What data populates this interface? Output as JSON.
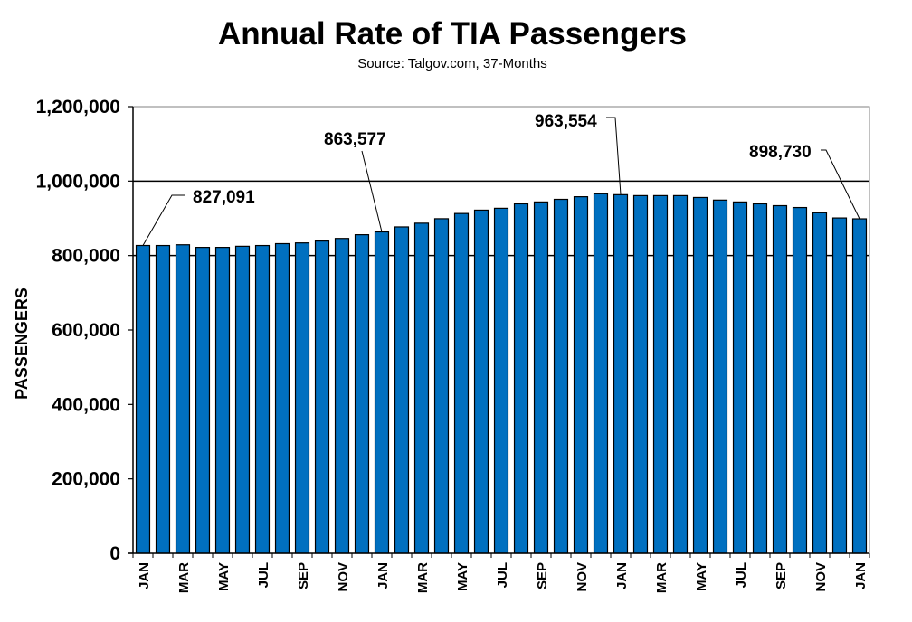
{
  "chart_data": {
    "type": "bar",
    "title": "Annual Rate of TIA Passengers",
    "subtitle": "Source: Talgov.com, 37-Months",
    "xlabel": "",
    "ylabel": "PASSENGERS",
    "ylim": [
      0,
      1200000
    ],
    "yticks": [
      0,
      200000,
      400000,
      600000,
      800000,
      1000000,
      1200000
    ],
    "ytick_labels": [
      "0",
      "200,000",
      "400,000",
      "600,000",
      "800,000",
      "1,000,000",
      "1,200,000"
    ],
    "gridlines": [
      800000,
      1000000
    ],
    "bar_color": "#0070C0",
    "categories": [
      "JAN",
      "FEB",
      "MAR",
      "APR",
      "MAY",
      "JUN",
      "JUL",
      "AUG",
      "SEP",
      "OCT",
      "NOV",
      "DEC",
      "JAN",
      "FEB",
      "MAR",
      "APR",
      "MAY",
      "JUN",
      "JUL",
      "AUG",
      "SEP",
      "OCT",
      "NOV",
      "DEC",
      "JAN",
      "FEB",
      "MAR",
      "APR",
      "MAY",
      "JUN",
      "JUL",
      "AUG",
      "SEP",
      "OCT",
      "NOV",
      "DEC",
      "JAN"
    ],
    "x_tick_labels_shown": [
      "JAN",
      "",
      "MAR",
      "",
      "MAY",
      "",
      "JUL",
      "",
      "SEP",
      "",
      "NOV",
      "",
      "JAN",
      "",
      "MAR",
      "",
      "MAY",
      "",
      "JUL",
      "",
      "SEP",
      "",
      "NOV",
      "",
      "JAN",
      "",
      "MAR",
      "",
      "MAY",
      "",
      "JUL",
      "",
      "SEP",
      "",
      "NOV",
      "",
      "JAN"
    ],
    "values": [
      827091,
      827000,
      829000,
      822000,
      822000,
      825000,
      827000,
      832000,
      834000,
      839000,
      846000,
      856000,
      863577,
      877000,
      887000,
      899000,
      913000,
      922000,
      927000,
      939000,
      944000,
      951000,
      958000,
      966000,
      963554,
      961000,
      961000,
      961000,
      956000,
      949000,
      944000,
      939000,
      934000,
      929000,
      915000,
      901000,
      898730
    ],
    "annotations": [
      {
        "index": 0,
        "label": "827,091"
      },
      {
        "index": 12,
        "label": "863,577"
      },
      {
        "index": 24,
        "label": "963,554"
      },
      {
        "index": 36,
        "label": "898,730"
      }
    ]
  }
}
